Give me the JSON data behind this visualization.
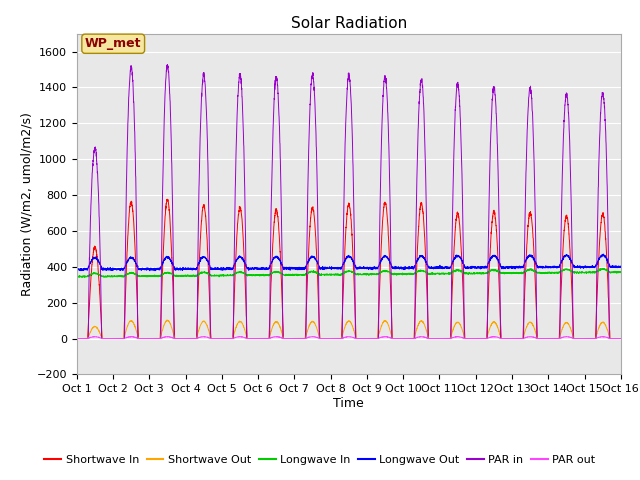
{
  "title": "Solar Radiation",
  "xlabel": "Time",
  "ylabel": "Radiation (W/m2, umol/m2/s)",
  "ylim": [
    -200,
    1700
  ],
  "yticks": [
    -200,
    0,
    200,
    400,
    600,
    800,
    1000,
    1200,
    1400,
    1600
  ],
  "x_tick_labels": [
    "Oct 1",
    "Oct 2",
    "Oct 3",
    "Oct 4",
    "Oct 5",
    "Oct 6",
    "Oct 7",
    "Oct 8",
    "Oct 9",
    "Oct 10",
    "Oct 11",
    "Oct 12",
    "Oct 13",
    "Oct 14",
    "Oct 15",
    "Oct 16"
  ],
  "num_days": 15,
  "pts_per_day": 288,
  "site_label": "WP_met",
  "site_label_color": "#8B0000",
  "site_box_facecolor": "#F5E6A0",
  "site_box_edgecolor": "#AA8800",
  "background_color": "#E8E8E8",
  "colors": {
    "shortwave_in": "#FF0000",
    "shortwave_out": "#FFA500",
    "longwave_in": "#00CC00",
    "longwave_out": "#0000FF",
    "PAR_in": "#9900CC",
    "PAR_out": "#FF44FF"
  },
  "legend_labels": [
    "Shortwave In",
    "Shortwave Out",
    "Longwave In",
    "Longwave Out",
    "PAR in",
    "PAR out"
  ],
  "title_fontsize": 11,
  "axis_label_fontsize": 9,
  "tick_fontsize": 8,
  "legend_fontsize": 8,
  "site_label_fontsize": 9
}
